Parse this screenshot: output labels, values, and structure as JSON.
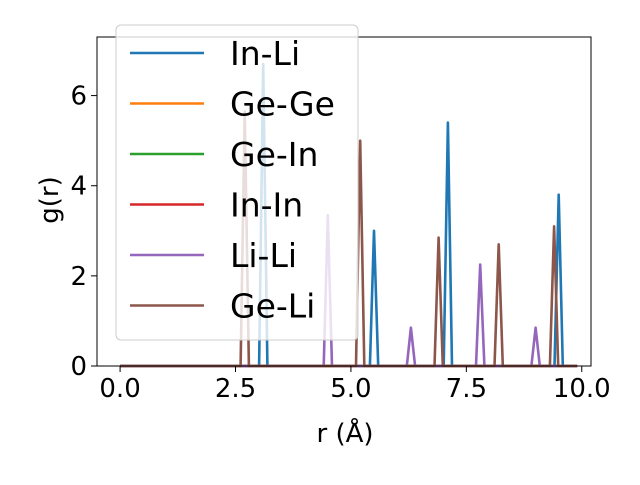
{
  "chart_data": {
    "type": "line",
    "xlabel": "r (Å)",
    "ylabel": "g(r)",
    "xlim": [
      -0.5,
      10.2
    ],
    "ylim": [
      0,
      7.3
    ],
    "xticks": [
      {
        "value": 0.0,
        "label": "0.0"
      },
      {
        "value": 2.5,
        "label": "2.5"
      },
      {
        "value": 5.0,
        "label": "5.0"
      },
      {
        "value": 7.5,
        "label": "7.5"
      },
      {
        "value": 10.0,
        "label": "10.0"
      }
    ],
    "yticks": [
      {
        "value": 0,
        "label": "0"
      },
      {
        "value": 2,
        "label": "2"
      },
      {
        "value": 4,
        "label": "4"
      },
      {
        "value": 6,
        "label": "6"
      }
    ],
    "grid": false,
    "legend_position": "upper-left",
    "peak_half_width": 0.09,
    "x_range": [
      0.0,
      9.9
    ],
    "series": [
      {
        "name": "In-Li",
        "color": "#1f77b4",
        "peaks": [
          [
            3.1,
            6.7
          ],
          [
            5.5,
            3.0
          ],
          [
            7.1,
            5.4
          ],
          [
            9.5,
            3.8
          ]
        ]
      },
      {
        "name": "Ge-Ge",
        "color": "#ff7f0e",
        "peaks": []
      },
      {
        "name": "Ge-In",
        "color": "#2ca02c",
        "peaks": []
      },
      {
        "name": "In-In",
        "color": "#d62728",
        "peaks": []
      },
      {
        "name": "Li-Li",
        "color": "#9467bd",
        "peaks": [
          [
            4.5,
            3.35
          ],
          [
            6.3,
            0.85
          ],
          [
            7.8,
            2.25
          ],
          [
            9.0,
            0.85
          ]
        ]
      },
      {
        "name": "Ge-Li",
        "color": "#8c564b",
        "peaks": [
          [
            2.7,
            5.65
          ],
          [
            5.2,
            5.0
          ],
          [
            6.9,
            2.85
          ],
          [
            8.2,
            2.7
          ],
          [
            9.4,
            3.1
          ]
        ]
      }
    ]
  }
}
